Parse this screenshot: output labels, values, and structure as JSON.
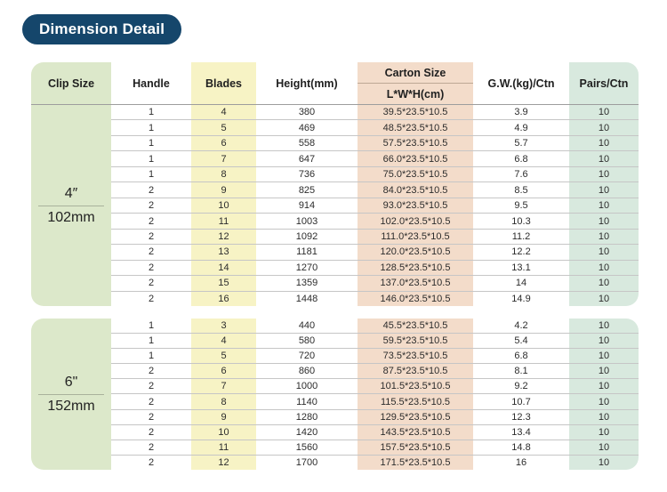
{
  "title": "Dimension Detail",
  "colors": {
    "title_pill": "#15466b",
    "clip_column": "#dce8ca",
    "blades_column": "#f7f3c5",
    "carton_column": "#f3dcca",
    "pairs_column": "#d8e9de"
  },
  "table": {
    "headers": {
      "clip_size": "Clip Size",
      "handle": "Handle",
      "blades": "Blades",
      "height": "Height(mm)",
      "carton_size": "Carton Size",
      "carton_sub": "L*W*H(cm)",
      "gw": "G.W.(kg)/Ctn",
      "pairs": "Pairs/Ctn"
    },
    "sections": [
      {
        "size_label": "4″",
        "size_mm": "102mm",
        "rows": [
          [
            "1",
            "4",
            "380",
            "39.5*23.5*10.5",
            "3.9",
            "10"
          ],
          [
            "1",
            "5",
            "469",
            "48.5*23.5*10.5",
            "4.9",
            "10"
          ],
          [
            "1",
            "6",
            "558",
            "57.5*23.5*10.5",
            "5.7",
            "10"
          ],
          [
            "1",
            "7",
            "647",
            "66.0*23.5*10.5",
            "6.8",
            "10"
          ],
          [
            "1",
            "8",
            "736",
            "75.0*23.5*10.5",
            "7.6",
            "10"
          ],
          [
            "2",
            "9",
            "825",
            "84.0*23.5*10.5",
            "8.5",
            "10"
          ],
          [
            "2",
            "10",
            "914",
            "93.0*23.5*10.5",
            "9.5",
            "10"
          ],
          [
            "2",
            "11",
            "1003",
            "102.0*23.5*10.5",
            "10.3",
            "10"
          ],
          [
            "2",
            "12",
            "1092",
            "111.0*23.5*10.5",
            "11.2",
            "10"
          ],
          [
            "2",
            "13",
            "1181",
            "120.0*23.5*10.5",
            "12.2",
            "10"
          ],
          [
            "2",
            "14",
            "1270",
            "128.5*23.5*10.5",
            "13.1",
            "10"
          ],
          [
            "2",
            "15",
            "1359",
            "137.0*23.5*10.5",
            "14",
            "10"
          ],
          [
            "2",
            "16",
            "1448",
            "146.0*23.5*10.5",
            "14.9",
            "10"
          ]
        ]
      },
      {
        "size_label": "6\"",
        "size_mm": "152mm",
        "rows": [
          [
            "1",
            "3",
            "440",
            "45.5*23.5*10.5",
            "4.2",
            "10"
          ],
          [
            "1",
            "4",
            "580",
            "59.5*23.5*10.5",
            "5.4",
            "10"
          ],
          [
            "1",
            "5",
            "720",
            "73.5*23.5*10.5",
            "6.8",
            "10"
          ],
          [
            "2",
            "6",
            "860",
            "87.5*23.5*10.5",
            "8.1",
            "10"
          ],
          [
            "2",
            "7",
            "1000",
            "101.5*23.5*10.5",
            "9.2",
            "10"
          ],
          [
            "2",
            "8",
            "1140",
            "115.5*23.5*10.5",
            "10.7",
            "10"
          ],
          [
            "2",
            "9",
            "1280",
            "129.5*23.5*10.5",
            "12.3",
            "10"
          ],
          [
            "2",
            "10",
            "1420",
            "143.5*23.5*10.5",
            "13.4",
            "10"
          ],
          [
            "2",
            "11",
            "1560",
            "157.5*23.5*10.5",
            "14.8",
            "10"
          ],
          [
            "2",
            "12",
            "1700",
            "171.5*23.5*10.5",
            "16",
            "10"
          ]
        ]
      }
    ]
  }
}
